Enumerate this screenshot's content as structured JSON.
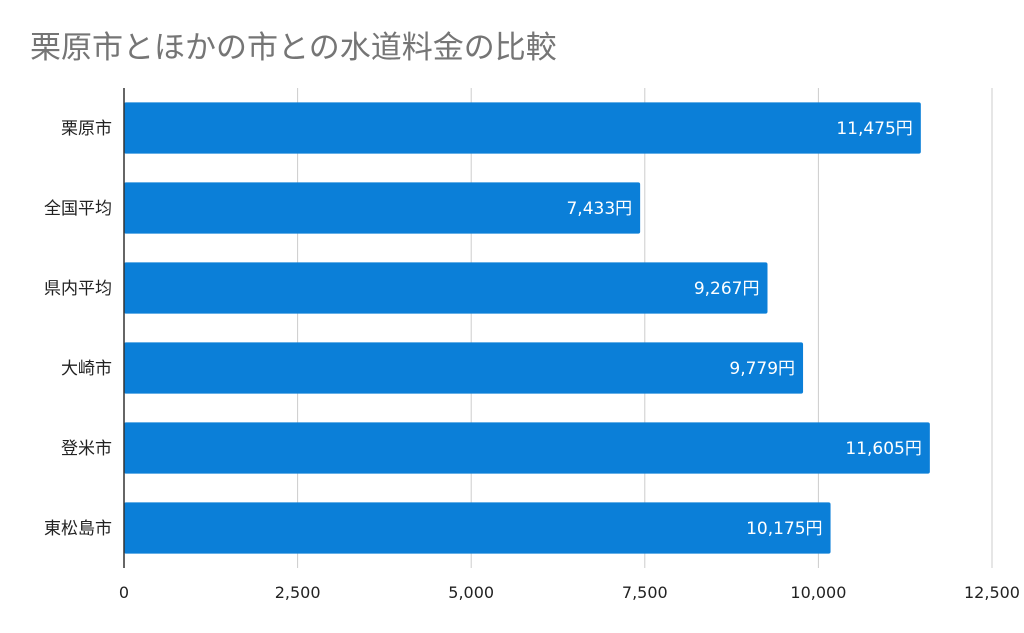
{
  "chart_data": {
    "type": "bar",
    "orientation": "horizontal",
    "title": "栗原市とほかの市との水道料金の比較",
    "categories": [
      "栗原市",
      "全国平均",
      "県内平均",
      "大崎市",
      "登米市",
      "東松島市"
    ],
    "values": [
      11475,
      7433,
      9267,
      9779,
      11605,
      10175
    ],
    "value_labels": [
      "11,475円",
      "7,433円",
      "9,267円",
      "9,779円",
      "11,605円",
      "10,175円"
    ],
    "xlim": [
      0,
      12500
    ],
    "x_ticks": [
      0,
      2500,
      5000,
      7500,
      10000,
      12500
    ],
    "x_tick_labels": [
      "0",
      "2,500",
      "5,000",
      "7,500",
      "10,000",
      "12,500"
    ],
    "grid": true,
    "bar_color": "#0b7fd8"
  }
}
